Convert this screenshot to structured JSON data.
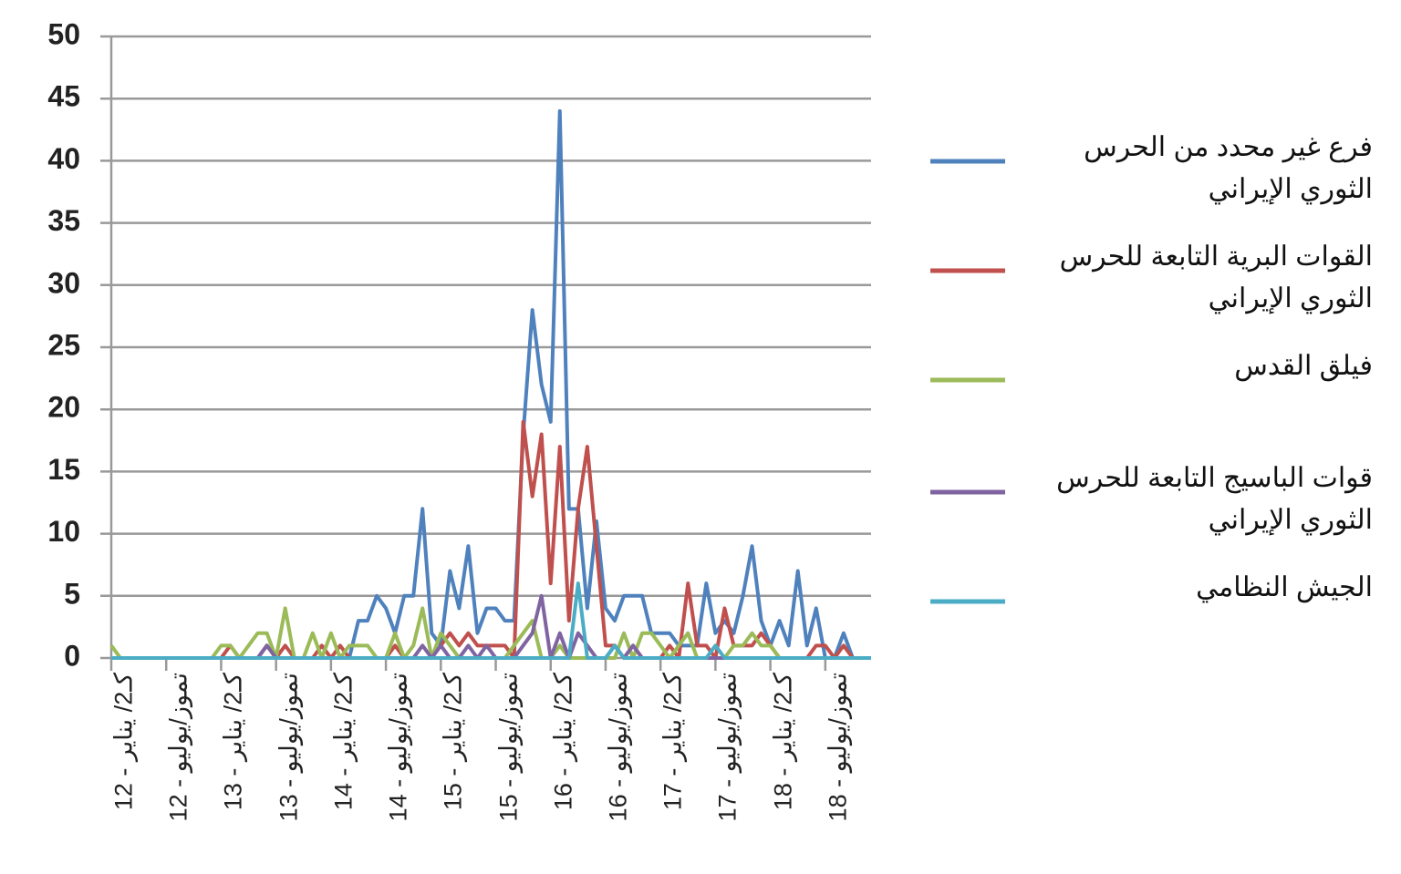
{
  "chart_data": {
    "type": "line",
    "categories": [
      "كـ2/ يناير - 12",
      null,
      null,
      null,
      null,
      null,
      "تموز/يوليو - 12",
      null,
      null,
      null,
      null,
      null,
      "كـ2/ يناير - 13",
      null,
      null,
      null,
      null,
      null,
      "تموز/يوليو - 13",
      null,
      null,
      null,
      null,
      null,
      "كـ2/ يناير - 14",
      null,
      null,
      null,
      null,
      null,
      "تموز/يوليو - 14",
      null,
      null,
      null,
      null,
      null,
      "كـ2/ يناير - 15",
      null,
      null,
      null,
      null,
      null,
      "تموز/يوليو - 15",
      null,
      null,
      null,
      null,
      null,
      "كـ2/ يناير - 16",
      null,
      null,
      null,
      null,
      null,
      "تموز/يوليو - 16",
      null,
      null,
      null,
      null,
      null,
      "كـ2/ يناير - 17",
      null,
      null,
      null,
      null,
      null,
      "تموز/يوليو - 17",
      null,
      null,
      null,
      null,
      null,
      "كـ2/ يناير - 18",
      null,
      null,
      null,
      null,
      null,
      "تموز/يوليو - 18",
      null,
      null,
      null,
      null,
      null
    ],
    "series": [
      {
        "name": "فرع غير محدد من الحرس الثوري الإيراني",
        "color": "#4f81bd",
        "values": [
          0,
          0,
          0,
          0,
          0,
          0,
          0,
          0,
          0,
          0,
          0,
          0,
          0,
          0,
          0,
          0,
          0,
          1,
          0,
          0,
          0,
          0,
          0,
          0,
          0,
          0,
          0,
          3,
          3,
          5,
          4,
          2,
          5,
          5,
          12,
          2,
          1,
          7,
          4,
          9,
          2,
          4,
          4,
          3,
          3,
          18,
          28,
          22,
          19,
          44,
          12,
          12,
          4,
          11,
          4,
          3,
          5,
          5,
          5,
          2,
          2,
          2,
          1,
          1,
          1,
          6,
          2,
          3,
          2,
          5,
          9,
          3,
          1,
          3,
          1,
          7,
          1,
          4,
          0,
          0,
          2,
          0,
          0,
          0
        ]
      },
      {
        "name": "القوات البرية التابعة للحرس الثوري الإيراني",
        "color": "#c0504d",
        "values": [
          0,
          0,
          0,
          0,
          0,
          0,
          0,
          0,
          0,
          0,
          0,
          0,
          0,
          1,
          0,
          0,
          0,
          1,
          0,
          1,
          0,
          0,
          0,
          1,
          0,
          1,
          0,
          0,
          0,
          0,
          0,
          1,
          0,
          0,
          0,
          0,
          1,
          2,
          1,
          2,
          1,
          1,
          1,
          1,
          0,
          19,
          13,
          18,
          6,
          17,
          3,
          12,
          17,
          9,
          1,
          1,
          0,
          1,
          0,
          0,
          0,
          1,
          0,
          6,
          1,
          1,
          0,
          4,
          1,
          1,
          1,
          2,
          1,
          0,
          0,
          0,
          0,
          1,
          1,
          0,
          1,
          0,
          0,
          0
        ]
      },
      {
        "name": "فيلق القدس",
        "color": "#9bbb59",
        "values": [
          1,
          0,
          0,
          0,
          0,
          0,
          0,
          0,
          0,
          0,
          0,
          0,
          1,
          1,
          0,
          1,
          2,
          2,
          0,
          4,
          0,
          0,
          2,
          0,
          2,
          0,
          1,
          1,
          1,
          0,
          0,
          2,
          0,
          1,
          4,
          0,
          2,
          1,
          0,
          0,
          0,
          0,
          0,
          0,
          1,
          2,
          3,
          0,
          0,
          1,
          0,
          0,
          0,
          0,
          0,
          0,
          2,
          0,
          2,
          2,
          1,
          0,
          1,
          2,
          0,
          0,
          0,
          0,
          1,
          1,
          2,
          1,
          1,
          0,
          0,
          0,
          0,
          0,
          0,
          0,
          0,
          0,
          0,
          0
        ]
      },
      {
        "name": "قوات الباسيج التابعة للحرس الثوري الإيراني",
        "color": "#8064a2",
        "values": [
          0,
          0,
          0,
          0,
          0,
          0,
          0,
          0,
          0,
          0,
          0,
          0,
          0,
          0,
          0,
          0,
          0,
          1,
          0,
          0,
          0,
          0,
          0,
          0,
          0,
          0,
          0,
          0,
          0,
          0,
          0,
          0,
          0,
          0,
          1,
          0,
          1,
          0,
          0,
          1,
          0,
          1,
          0,
          0,
          0,
          1,
          2,
          5,
          0,
          2,
          0,
          2,
          1,
          0,
          0,
          1,
          0,
          1,
          0,
          0,
          0,
          0,
          0,
          0,
          0,
          0,
          0,
          0,
          0,
          0,
          0,
          0,
          0,
          0,
          0,
          0,
          0,
          0,
          0,
          0,
          0,
          0,
          0,
          0
        ]
      },
      {
        "name": "الجيش النظامي",
        "color": "#4bacc6",
        "values": [
          0,
          0,
          0,
          0,
          0,
          0,
          0,
          0,
          0,
          0,
          0,
          0,
          0,
          0,
          0,
          0,
          0,
          0,
          0,
          0,
          0,
          0,
          0,
          0,
          0,
          0,
          0,
          0,
          0,
          0,
          0,
          0,
          0,
          0,
          0,
          0,
          0,
          0,
          0,
          0,
          0,
          0,
          0,
          0,
          0,
          0,
          0,
          0,
          0,
          0,
          0,
          6,
          0,
          0,
          0,
          1,
          0,
          0,
          0,
          0,
          0,
          0,
          0,
          0,
          0,
          0,
          1,
          0,
          0,
          0,
          0,
          0,
          0,
          0,
          0,
          0,
          0,
          0,
          0,
          0,
          0,
          0,
          0,
          0
        ]
      }
    ],
    "ylim": [
      0,
      50
    ],
    "yticks": [
      0,
      5,
      10,
      15,
      20,
      25,
      30,
      35,
      40,
      45,
      50
    ],
    "grid": true,
    "legend": "right"
  }
}
